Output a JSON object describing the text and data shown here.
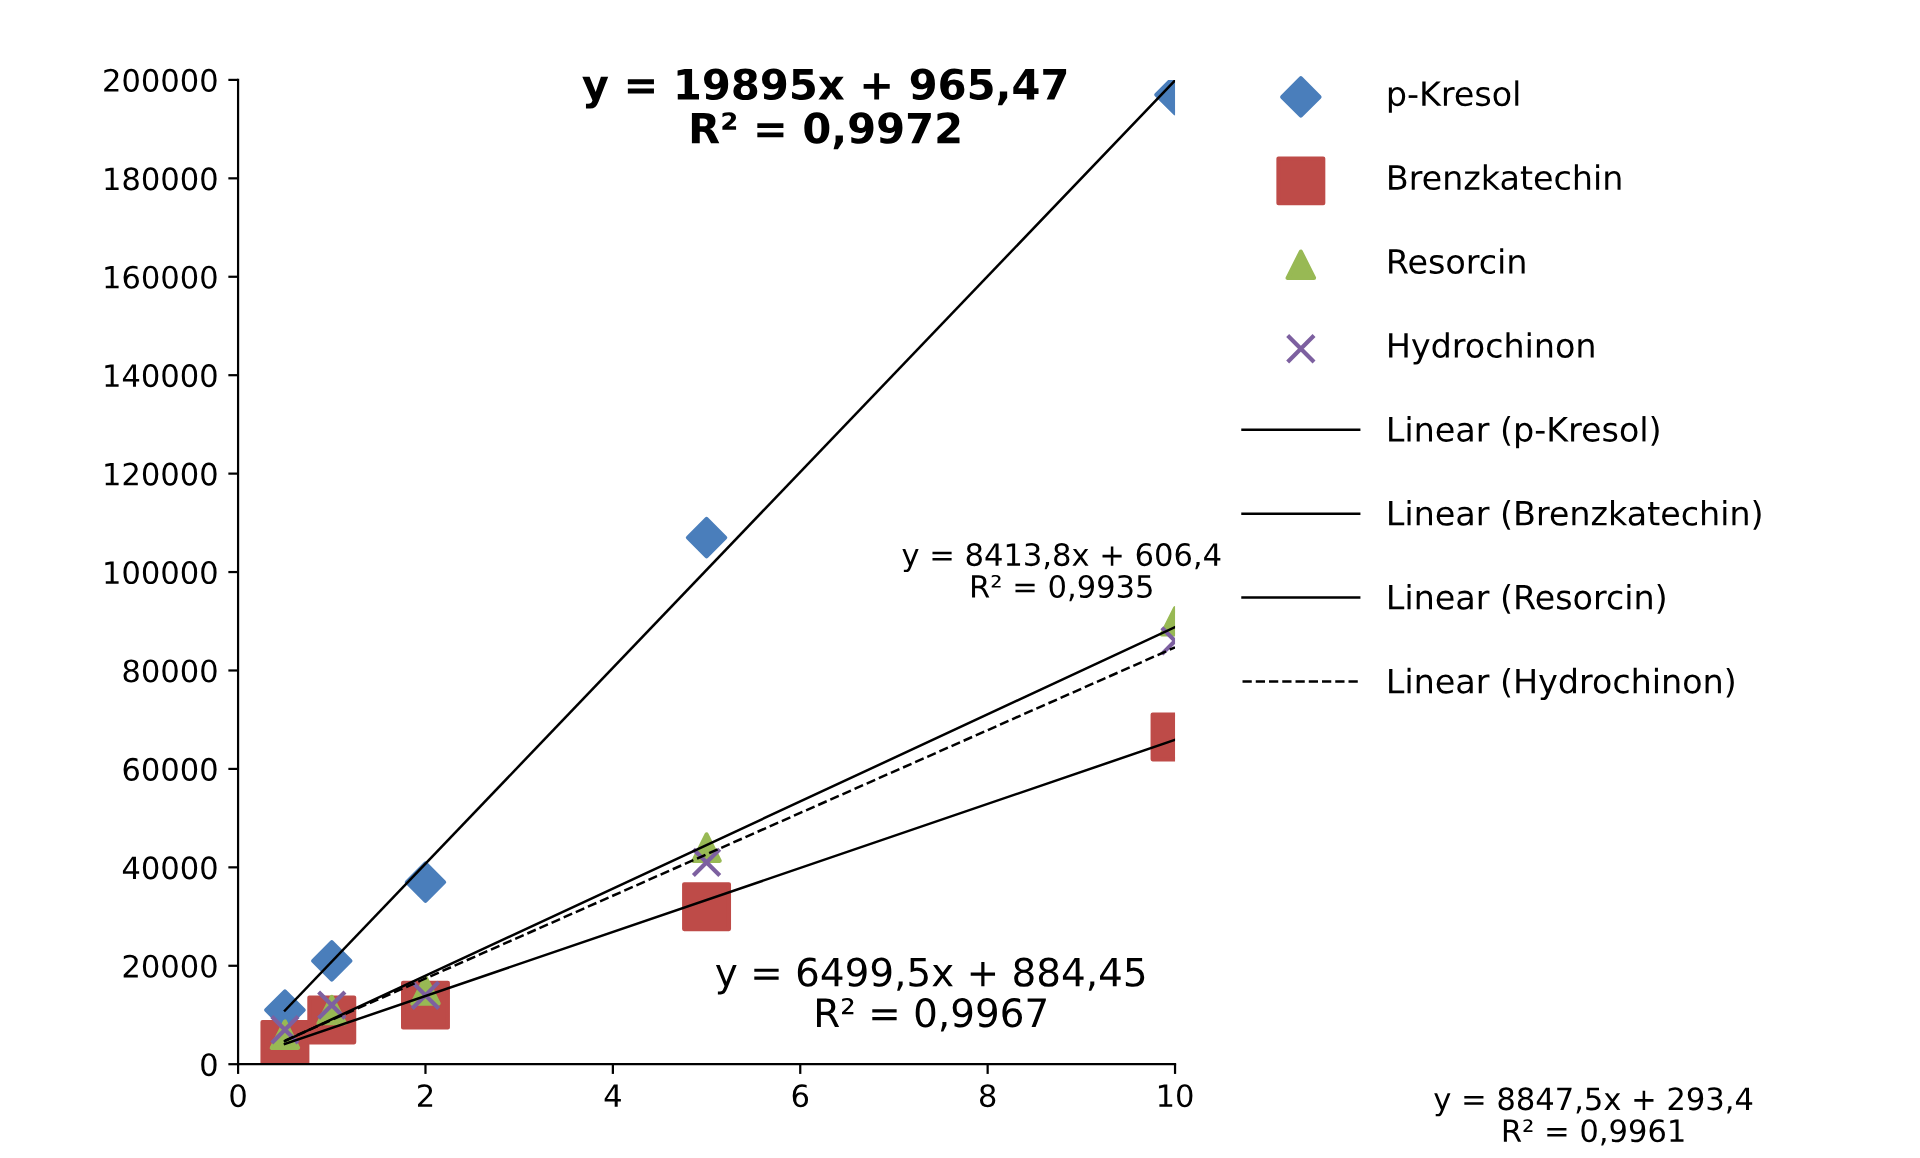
{
  "chart_data": {
    "type": "scatter",
    "xlim": [
      0,
      10
    ],
    "xticks": [
      0,
      2,
      4,
      6,
      8,
      10
    ],
    "ylim": [
      0,
      200000
    ],
    "yticks": [
      0,
      20000,
      40000,
      60000,
      80000,
      100000,
      120000,
      140000,
      160000,
      180000,
      200000
    ],
    "grid": false,
    "legend": "right",
    "series": [
      {
        "name": "p-Kresol",
        "color": "#4a7ebb",
        "marker": "diamond",
        "x": [
          0.5,
          1,
          2,
          5,
          10
        ],
        "values": [
          11000,
          21000,
          37000,
          107000,
          197000
        ]
      },
      {
        "name": "Brenzkatechin",
        "color": "#be4b48",
        "marker": "square",
        "x": [
          0.5,
          1,
          2,
          5,
          10
        ],
        "values": [
          4000,
          9000,
          12000,
          32000,
          66500
        ]
      },
      {
        "name": "Resorcin",
        "color": "#98b954",
        "marker": "triangle",
        "x": [
          0.5,
          1,
          2,
          5,
          10
        ],
        "values": [
          6000,
          11000,
          15000,
          44000,
          90000
        ]
      },
      {
        "name": "Hydrochinon",
        "color": "#7d60a0",
        "marker": "cross",
        "x": [
          0.5,
          1,
          2,
          5,
          10
        ],
        "values": [
          7000,
          12000,
          14000,
          41000,
          86000
        ]
      },
      {
        "name": "Linear (p-Kresol)",
        "type": "line",
        "color": "#000000",
        "line_style": "solid",
        "x": [
          0.5,
          10
        ],
        "values": [
          10900,
          199900
        ]
      },
      {
        "name": "Linear (Brenzkatechin)",
        "type": "line",
        "color": "#000000",
        "line_style": "solid",
        "x": [
          0.5,
          10
        ],
        "values": [
          4100,
          65900
        ]
      },
      {
        "name": "Linear (Resorcin)",
        "type": "line",
        "color": "#000000",
        "line_style": "solid",
        "x": [
          0.5,
          10
        ],
        "values": [
          4700,
          88800
        ]
      },
      {
        "name": "Linear (Hydrochinon)",
        "type": "line",
        "color": "#000000",
        "line_style": "dashed",
        "x": [
          0.5,
          10
        ],
        "values": [
          4800,
          84700
        ]
      }
    ],
    "annotations": [
      "y = 19895x + 965,47\nR² = 0,9972",
      "y = 8413,8x + 606,4\nR² = 0,9935",
      "y = 6499,5x + 884,45\nR² = 0,9967",
      "y = 8847,5x + 293,4\nR² = 0,9961"
    ]
  }
}
